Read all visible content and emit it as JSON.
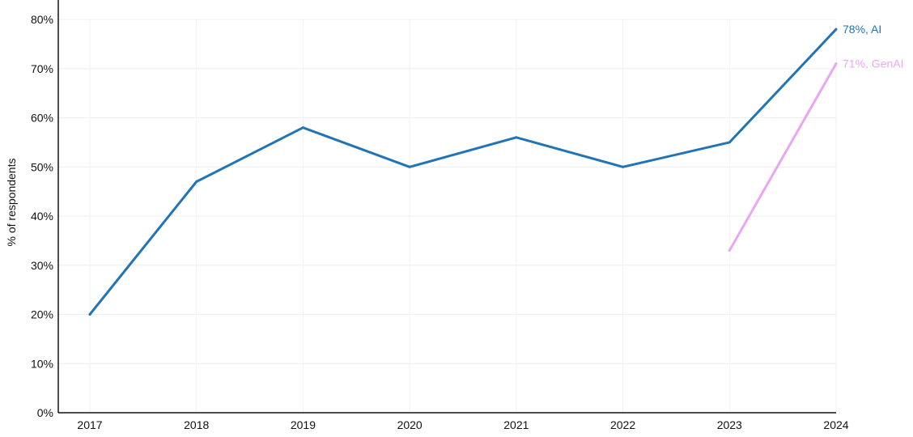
{
  "chart_data": {
    "type": "line",
    "ylabel": "% of respondents",
    "xlabel": "",
    "x": [
      "2017",
      "2018",
      "2019",
      "2020",
      "2021",
      "2022",
      "2023",
      "2024"
    ],
    "ylim": [
      0,
      80
    ],
    "yticks": [
      "0%",
      "10%",
      "20%",
      "30%",
      "40%",
      "50%",
      "60%",
      "70%",
      "80%"
    ],
    "grid": true,
    "legend": "none",
    "series": [
      {
        "name": "AI",
        "color": "#2274b6",
        "x": [
          "2017",
          "2018",
          "2019",
          "2020",
          "2021",
          "2022",
          "2023",
          "2024"
        ],
        "values": [
          20,
          47,
          58,
          50,
          56,
          50,
          55,
          78
        ],
        "end_label": "78%, AI"
      },
      {
        "name": "GenAI",
        "color": "#e9a6f5",
        "x": [
          "2023",
          "2024"
        ],
        "values": [
          33,
          71
        ],
        "end_label": "71%, GenAI"
      }
    ]
  }
}
